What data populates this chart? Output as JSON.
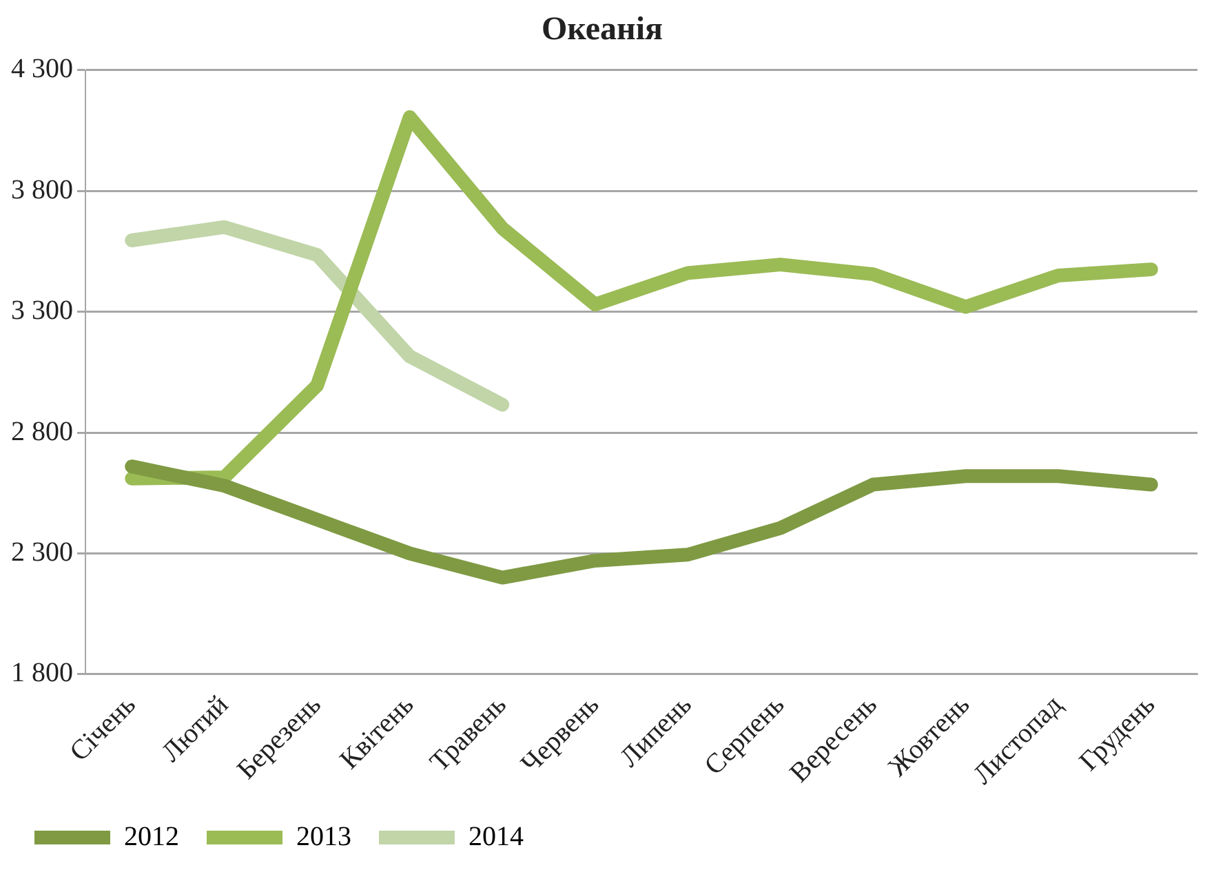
{
  "chart_data": {
    "type": "line",
    "title": "Океанія",
    "categories": [
      "Січень",
      "Лютий",
      "Березень",
      "Квітень",
      "Травень",
      "Червень",
      "Липень",
      "Серпень",
      "Вересень",
      "Жовтень",
      "Листопад",
      "Грудень"
    ],
    "series": [
      {
        "name": "2012",
        "color": "#7f9a43",
        "values": [
          2660,
          2580,
          2440,
          2300,
          2200,
          2270,
          2295,
          2405,
          2585,
          2620,
          2620,
          2585
        ]
      },
      {
        "name": "2013",
        "color": "#9bbb55",
        "values": [
          2610,
          2615,
          2995,
          4105,
          3645,
          3330,
          3460,
          3495,
          3455,
          3320,
          3450,
          3475
        ]
      },
      {
        "name": "2014",
        "color": "#c1d5a8",
        "values": [
          3595,
          3650,
          3535,
          3115,
          2915,
          null,
          null,
          null,
          null,
          null,
          null,
          null
        ]
      }
    ],
    "ylim": [
      1800,
      4300
    ],
    "yticks": [
      {
        "value": 1800,
        "label": "1 800"
      },
      {
        "value": 2300,
        "label": "2 300"
      },
      {
        "value": 2800,
        "label": "2 800"
      },
      {
        "value": 3300,
        "label": "3 300"
      },
      {
        "value": 3800,
        "label": "3 800"
      },
      {
        "value": 4300,
        "label": "4 300"
      }
    ],
    "grid": "y",
    "legend": "bottom",
    "marker": "none",
    "line_style": "solid"
  }
}
